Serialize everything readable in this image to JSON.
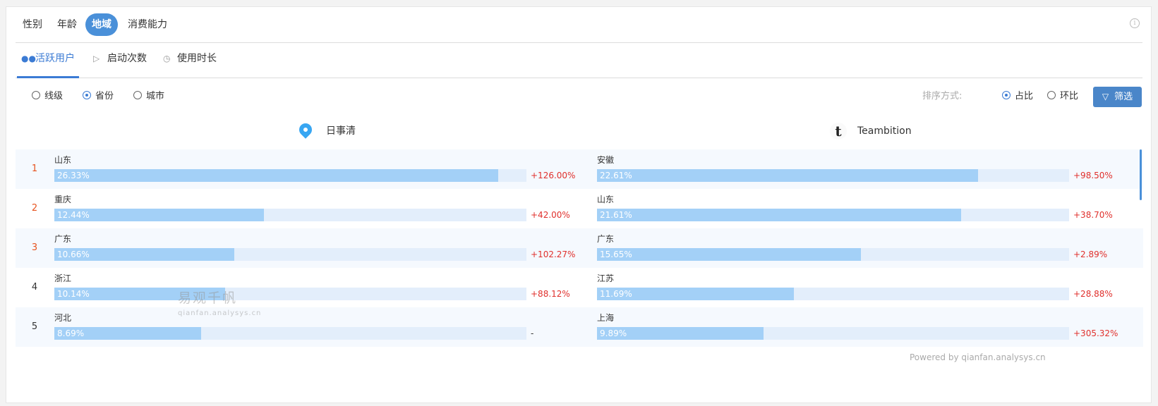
{
  "top_tabs": [
    "性别",
    "年龄",
    "地域",
    "消费能力"
  ],
  "info_icon": "info-icon",
  "metric_tabs": [
    {
      "label": "活跃用户",
      "icon": "users-icon"
    },
    {
      "label": "启动次数",
      "icon": "play-icon"
    },
    {
      "label": "使用时长",
      "icon": "clock-icon"
    }
  ],
  "level_options": [
    "线级",
    "省份",
    "城市"
  ],
  "selected_level": "省份",
  "sort": {
    "label": "排序方式:",
    "options": [
      "占比",
      "环比"
    ],
    "selected": "占比"
  },
  "filter_button": "筛选",
  "apps": {
    "left": {
      "name": "日事清",
      "icon": "location-pin-icon"
    },
    "right": {
      "name": "Teambition",
      "icon": "teambition-logo-icon"
    }
  },
  "rows": [
    {
      "rank": "1",
      "left": {
        "province": "山东",
        "share": "26.33%",
        "share_value": 26.33,
        "change": "+126.00%"
      },
      "right": {
        "province": "安徽",
        "share": "22.61%",
        "share_value": 22.61,
        "change": "+98.50%"
      }
    },
    {
      "rank": "2",
      "left": {
        "province": "重庆",
        "share": "12.44%",
        "share_value": 12.44,
        "change": "+42.00%"
      },
      "right": {
        "province": "山东",
        "share": "21.61%",
        "share_value": 21.61,
        "change": "+38.70%"
      }
    },
    {
      "rank": "3",
      "left": {
        "province": "广东",
        "share": "10.66%",
        "share_value": 10.66,
        "change": "+102.27%"
      },
      "right": {
        "province": "广东",
        "share": "15.65%",
        "share_value": 15.65,
        "change": "+2.89%"
      }
    },
    {
      "rank": "4",
      "left": {
        "province": "浙江",
        "share": "10.14%",
        "share_value": 10.14,
        "change": "+88.12%"
      },
      "right": {
        "province": "江苏",
        "share": "11.69%",
        "share_value": 11.69,
        "change": "+28.88%"
      }
    },
    {
      "rank": "5",
      "left": {
        "province": "河北",
        "share": "8.69%",
        "share_value": 8.69,
        "change": "-"
      },
      "right": {
        "province": "上海",
        "share": "9.89%",
        "share_value": 9.89,
        "change": "+305.32%"
      }
    }
  ],
  "watermark": {
    "main": "易观千帆",
    "sub": "qianfan.analysys.cn"
  },
  "powered_by": "Powered by qianfan.analysys.cn",
  "colors": {
    "accent": "#4a90d9",
    "bar": "#a3d0f7",
    "track": "#e3eefb",
    "change_up": "#e0302c",
    "rank_hot": "#e7531f"
  }
}
